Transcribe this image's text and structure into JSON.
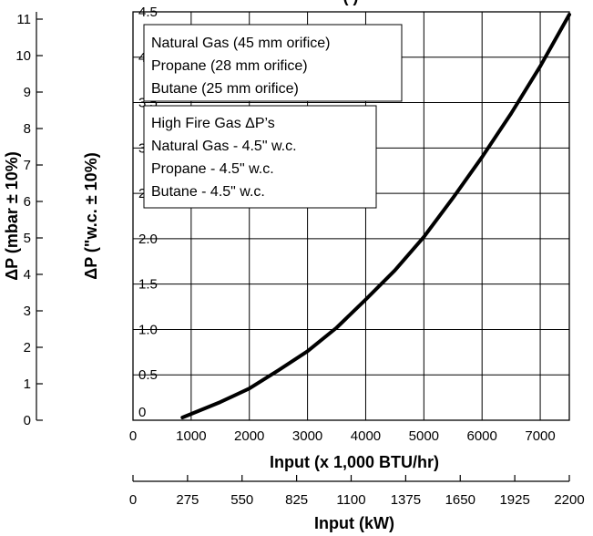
{
  "chart_data": {
    "type": "line",
    "title_partial": "(                                    )",
    "x_label": "Input (x 1,000 BTU/hr)",
    "x_ticks": [
      0,
      1000,
      2000,
      3000,
      4000,
      5000,
      6000,
      7000
    ],
    "xlim": [
      0,
      7500
    ],
    "x2_label": "Input (kW)",
    "x2_ticks": [
      0,
      275,
      550,
      825,
      1100,
      1375,
      1650,
      1925,
      2200
    ],
    "x2lim": [
      0,
      2200
    ],
    "y_label": "ΔP (\"w.c. ± 10%)",
    "y_ticks": [
      "0",
      "0.5",
      "1.0",
      "1.5",
      "2.0",
      "2.5",
      "3.0",
      "3.5",
      "4.0",
      "4.5"
    ],
    "ylim": [
      0,
      4.5
    ],
    "y2_label": "ΔP (mbar ± 10%)",
    "y2_ticks": [
      0,
      1,
      2,
      3,
      4,
      5,
      6,
      7,
      8,
      9,
      10,
      11
    ],
    "y2lim": [
      0,
      11.2
    ],
    "grid": true,
    "series": [
      {
        "x": [
          850,
          1500,
          2000,
          2500,
          3000,
          3500,
          4000,
          4500,
          5000,
          5500,
          6000,
          6500,
          7000,
          7500
        ],
        "y": [
          0.03,
          0.2,
          0.35,
          0.55,
          0.76,
          1.02,
          1.33,
          1.65,
          2.02,
          2.45,
          2.9,
          3.38,
          3.9,
          4.47
        ]
      }
    ],
    "legend_box_1": [
      "Natural Gas (45 mm orifice)",
      "Propane (28 mm orifice)",
      "Butane (25 mm orifice)"
    ],
    "legend_box_2": [
      "High Fire Gas ΔP’s",
      "Natural Gas - 4.5\" w.c.",
      "Propane - 4.5\" w.c.",
      "Butane - 4.5\" w.c."
    ],
    "colors": {
      "line": "#000000",
      "grid": "#000000",
      "background": "#ffffff"
    }
  }
}
